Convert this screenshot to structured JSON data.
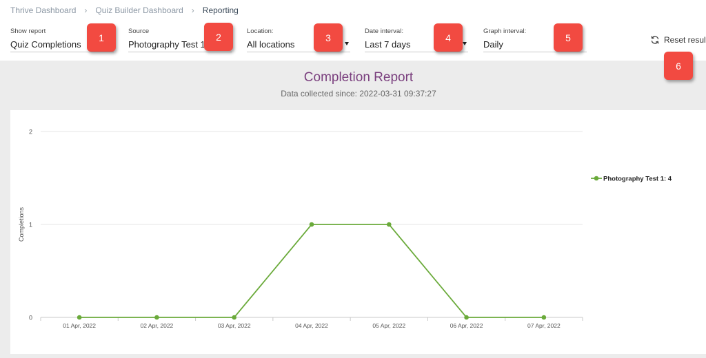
{
  "breadcrumb": [
    "Thrive Dashboard",
    "Quiz Builder Dashboard",
    "Reporting"
  ],
  "filters": {
    "show_report": {
      "label": "Show report",
      "value": "Quiz Completions"
    },
    "source": {
      "label": "Source",
      "value": "Photography Test 1"
    },
    "location": {
      "label": "Location:",
      "value": "All locations"
    },
    "date_interval": {
      "label": "Date interval:",
      "value": "Last 7 days"
    },
    "graph_interval": {
      "label": "Graph interval:",
      "value": "Daily"
    }
  },
  "badges": [
    "1",
    "2",
    "3",
    "4",
    "5",
    "6"
  ],
  "reset_label": "Reset results",
  "icons": {
    "reset": "refresh-icon",
    "caret": "caret-down-icon"
  },
  "report": {
    "title": "Completion Report",
    "subtitle": "Data collected since: 2022-03-31 09:37:27"
  },
  "colors": {
    "accent": "#7a3f7e",
    "series": "#6aaa3a",
    "badge": "#f24a41"
  },
  "chart_data": {
    "type": "line",
    "x": [
      "01 Apr, 2022",
      "02 Apr, 2022",
      "03 Apr, 2022",
      "04 Apr, 2022",
      "05 Apr, 2022",
      "06 Apr, 2022",
      "07 Apr, 2022"
    ],
    "series": [
      {
        "name": "Photography Test 1: 4",
        "values": [
          0,
          0,
          0,
          1,
          1,
          0,
          0
        ]
      }
    ],
    "ylabel": "Completions",
    "ylim": [
      0,
      2
    ],
    "yticks": [
      0,
      1,
      2
    ],
    "grid": true,
    "legend": "right"
  }
}
